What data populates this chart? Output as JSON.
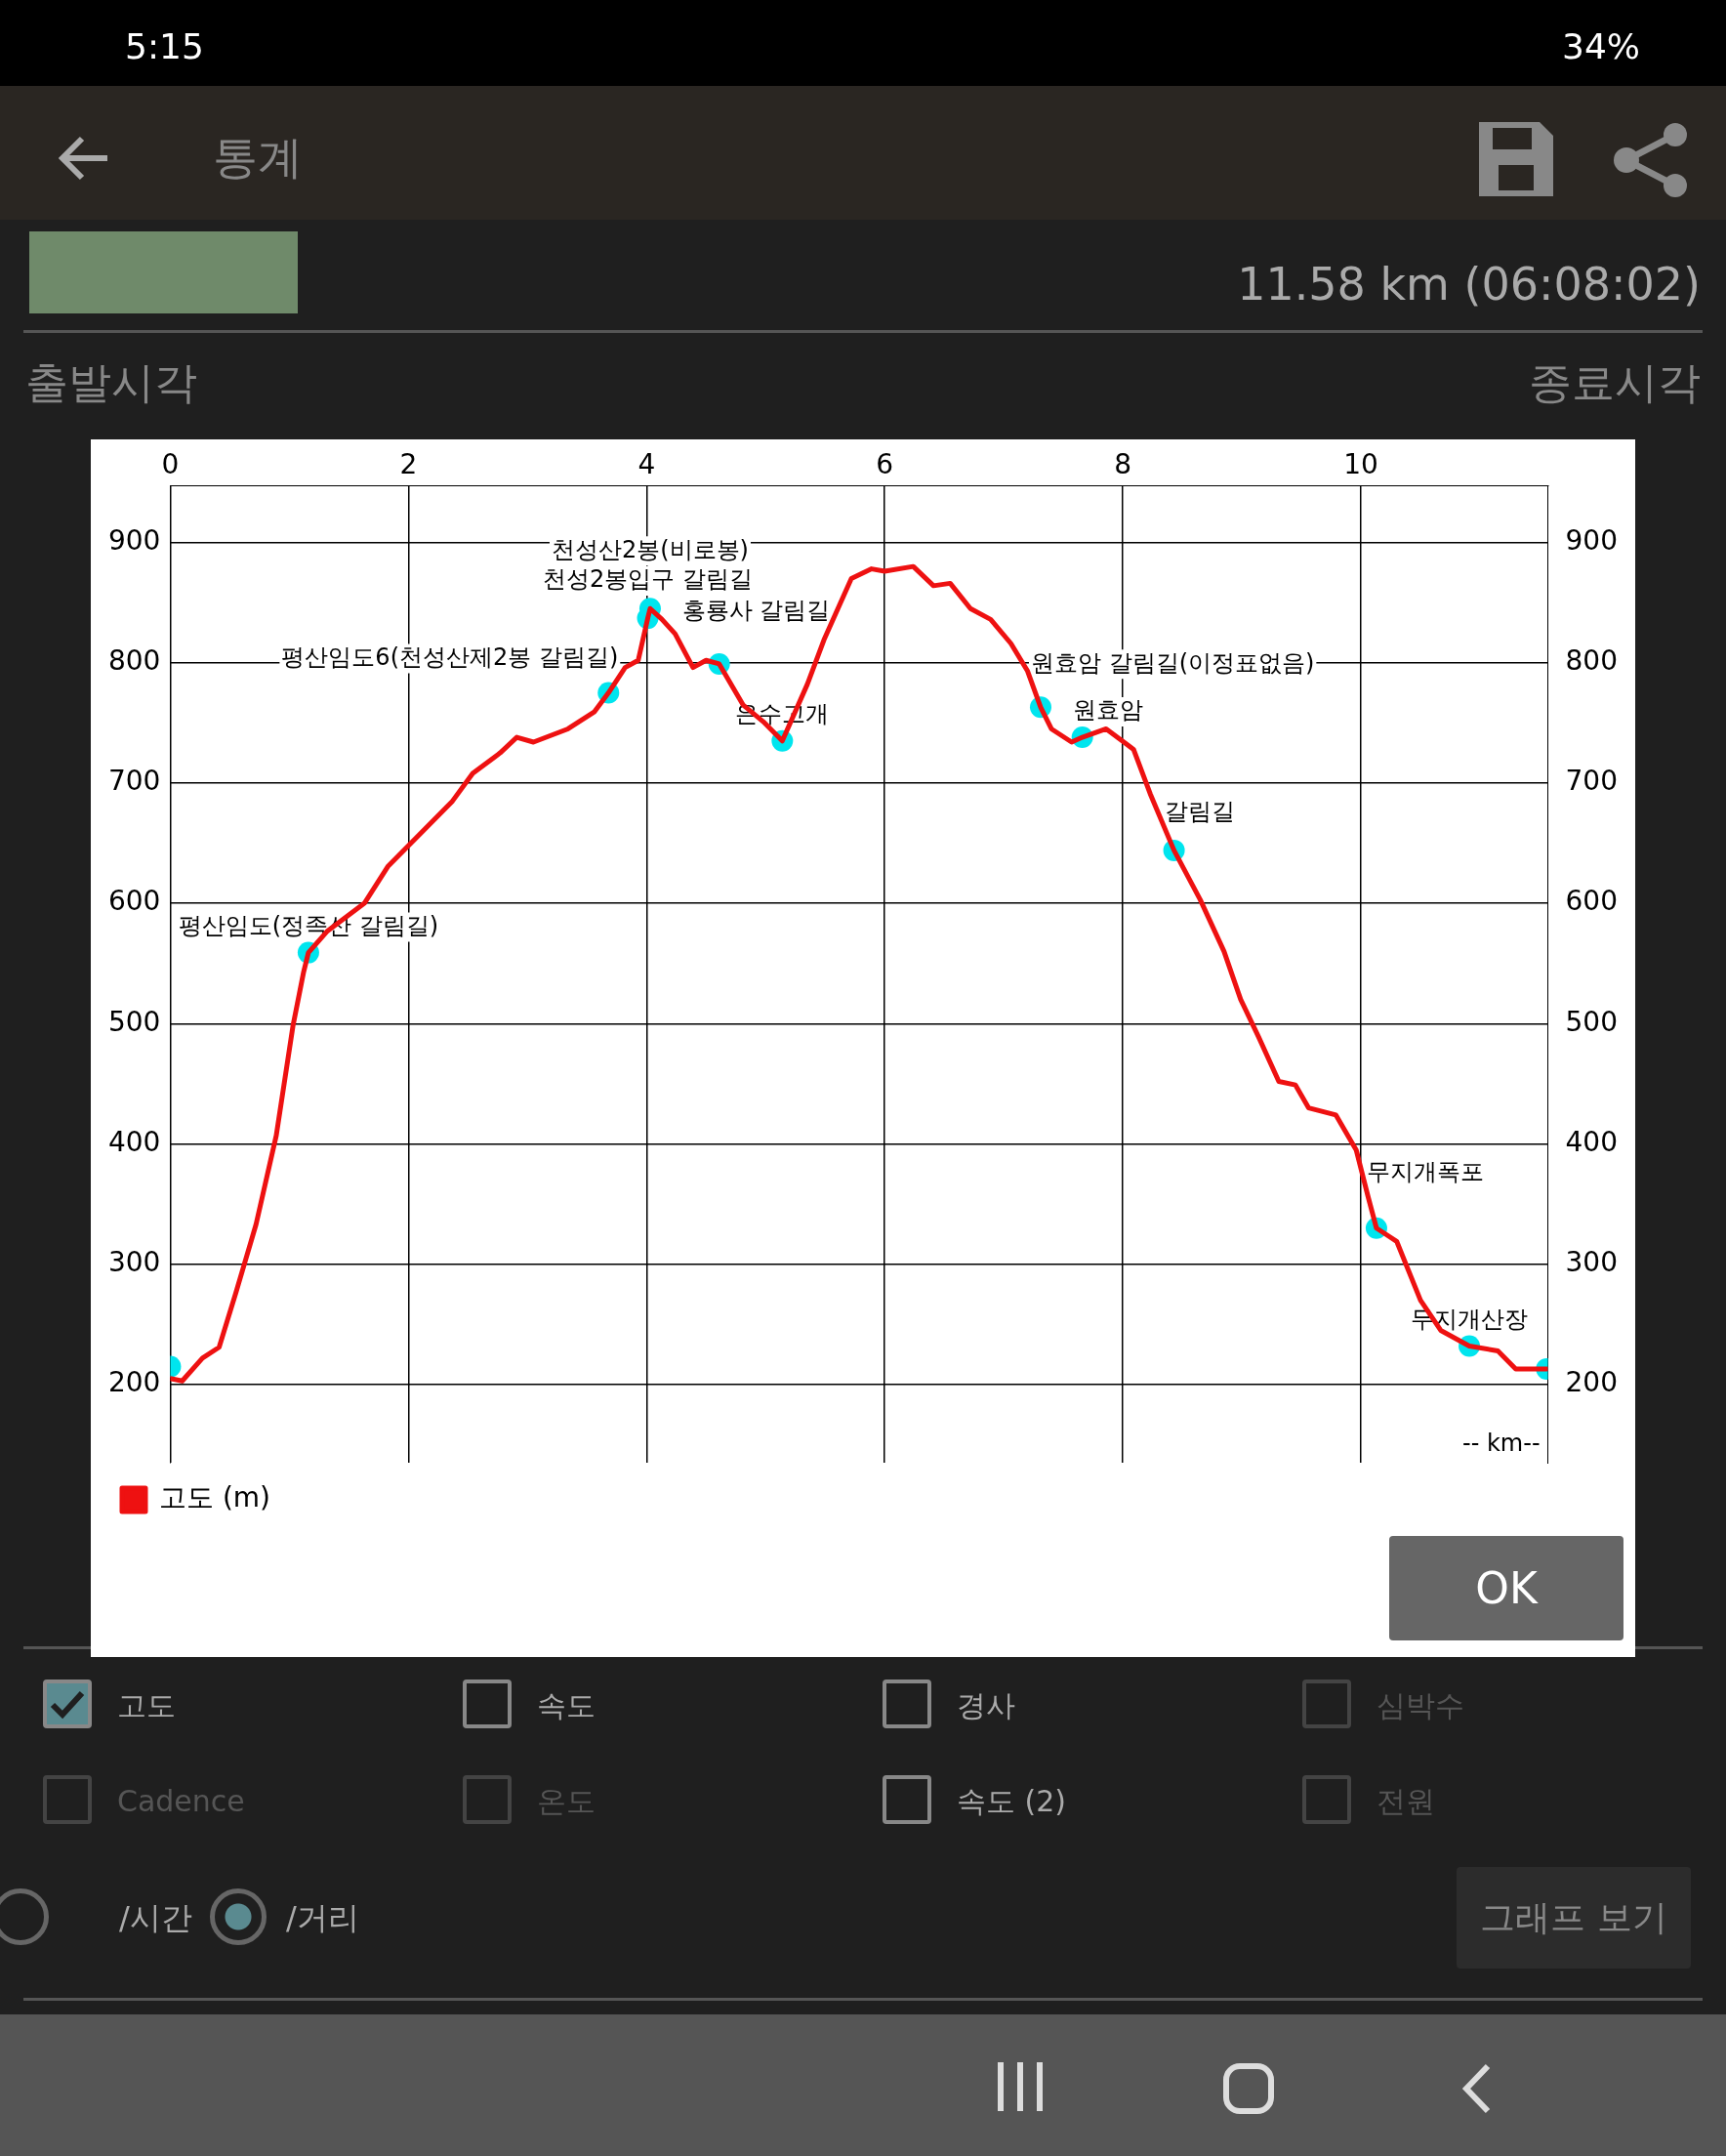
{
  "chart_data": {
    "type": "line",
    "annotations": [
      "-- km--",
      "5:15",
      "34%",
      "통계",
      "11.58 km (06:08:02)",
      "출발시각",
      "종료시각",
      "고도",
      "속도",
      "경사",
      "심박수",
      "Cadence",
      "온도",
      "속도 (2)",
      "전원",
      "/시간",
      "/거리",
      "그래프 보기",
      "OK",
      {
        "text": "평산임도(정족산 갈림길)",
        "x": 1.16,
        "y": 559
      },
      {
        "text": "평산임도6(천성산제2봉 갈림길)",
        "x": 3.68,
        "y": 775
      },
      {
        "text": "천성2봉입구 갈림길",
        "x": 4.01,
        "y": 837
      },
      {
        "text": "천성산2봉(비로봉)",
        "x": 4.03,
        "y": 845
      },
      {
        "text": "홍룡사 갈림길",
        "x": 4.61,
        "y": 799
      },
      {
        "text": "은수고개",
        "x": 5.14,
        "y": 735
      },
      {
        "text": "원효암 갈림길(이정표없음)",
        "x": 7.31,
        "y": 763
      },
      {
        "text": "원효암",
        "x": 7.66,
        "y": 738
      },
      {
        "text": "갈림길",
        "x": 8.43,
        "y": 644
      },
      {
        "text": "무지개폭포",
        "x": 10.13,
        "y": 330
      },
      {
        "text": "무지개산장",
        "x": 10.91,
        "y": 232
      }
    ],
    "x": [
      0,
      0.1,
      0.27,
      0.41,
      0.55,
      0.72,
      0.89,
      1.03,
      1.12,
      1.16,
      1.32,
      1.63,
      1.83,
      2.09,
      2.37,
      2.54,
      2.77,
      2.91,
      3.05,
      3.34,
      3.56,
      3.68,
      3.82,
      3.93,
      4.01,
      4.03,
      4.13,
      4.24,
      4.39,
      4.5,
      4.61,
      4.81,
      4.98,
      5.14,
      5.35,
      5.49,
      5.72,
      5.89,
      6.0,
      6.24,
      6.41,
      6.55,
      6.72,
      6.89,
      7.06,
      7.2,
      7.31,
      7.4,
      7.57,
      7.66,
      7.86,
      8.09,
      8.23,
      8.43,
      8.65,
      8.85,
      8.99,
      9.14,
      9.31,
      9.45,
      9.56,
      9.79,
      9.96,
      10.06,
      10.13,
      10.3,
      10.5,
      10.67,
      10.91,
      11.15,
      11.3,
      11.56
    ],
    "xlim": [
      0,
      11.57
    ],
    "xticks": [
      0,
      2,
      4,
      6,
      8,
      10
    ],
    "ylim": [
      135,
      947
    ],
    "yticks": [
      200,
      300,
      400,
      500,
      600,
      700,
      800,
      900
    ],
    "y2lim": [
      135,
      947
    ],
    "y2ticks": [
      200,
      300,
      400,
      500,
      600,
      700,
      800,
      900
    ],
    "grid": true,
    "legend": "bottom",
    "series": [
      {
        "name": "고도 (m)",
        "type": "line",
        "color": "#ee1111",
        "marker": "none",
        "values": [
          205,
          203,
          222,
          231,
          276,
          333,
          407,
          498,
          543,
          559,
          577,
          600,
          631,
          657,
          685,
          708,
          725,
          738,
          734,
          745,
          759,
          775,
          796,
          802,
          837,
          845,
          836,
          824,
          796,
          802,
          799,
          765,
          751,
          735,
          782,
          819,
          870,
          878,
          876,
          880,
          864,
          866,
          845,
          836,
          816,
          793,
          763,
          745,
          734,
          738,
          745,
          728,
          691,
          644,
          603,
          560,
          520,
          489,
          452,
          449,
          430,
          424,
          395,
          356,
          330,
          319,
          270,
          245,
          232,
          228,
          213,
          213
        ]
      },
      {
        "type": "scatter",
        "color": "#00e5ee",
        "marker": "circle",
        "x": [
          0,
          1.16,
          3.68,
          4.01,
          4.03,
          4.61,
          5.14,
          7.31,
          7.66,
          8.43,
          10.13,
          10.91,
          11.56
        ],
        "values": [
          215,
          559,
          775,
          837,
          845,
          799,
          735,
          763,
          738,
          644,
          330,
          232,
          213
        ]
      }
    ]
  }
}
